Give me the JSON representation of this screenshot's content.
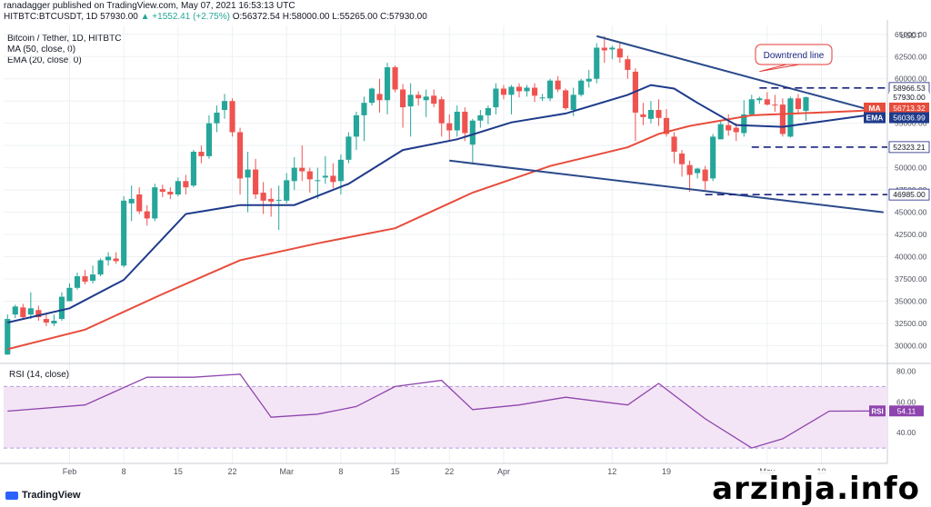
{
  "header": {
    "publisher_line": "ranadagger published on TradingView.com, May 07, 2021 16:53:13 UTC",
    "symbol": "HITBTC:BTCUSDT, 1D",
    "last": "57930.00",
    "change": "▲ +1552.41 (+2.75%)",
    "ohlc": "O:56372.54 H:58000.00 L:55265.00 C:57930.00"
  },
  "indicators": {
    "title": "Bitcoin / Tether, 1D, HITBTC",
    "ma": "MA (50, close, 0)",
    "ema": "EMA (20, close, 0)",
    "rsi": "RSI (14, close)"
  },
  "footer": {
    "logo_text": "TradingView"
  },
  "watermark": "arzinja.info",
  "colors": {
    "up": "#26a69a",
    "down": "#ef5350",
    "ma": "#e74c3c",
    "ema": "#1e3a8a",
    "trendline": "#2b4a8b",
    "rsi_line": "#8e44ad",
    "rsi_band": "#f3e5f5"
  },
  "chart_data": {
    "type": "candlestick",
    "price_axis": {
      "unit_label": "USDT",
      "ticks": [
        30000,
        32500,
        35000,
        37500,
        40000,
        42500,
        45000,
        47500,
        50000,
        52500,
        55000,
        57500,
        60000,
        62500,
        65000
      ],
      "tick_labels": [
        "30000.00",
        "32500.00",
        "35000.00",
        "37500.00",
        "40000.00",
        "42500.00",
        "45000.00",
        "47500.00",
        "50000.00",
        "52500.00",
        "55000.00",
        "57500.00",
        "60000.00",
        "62500.00",
        "65000.00"
      ],
      "range": [
        28000,
        66000
      ]
    },
    "time_axis": {
      "labels": [
        "Feb",
        "8",
        "15",
        "22",
        "Mar",
        "8",
        "15",
        "22",
        "Apr",
        "12",
        "19",
        "May",
        "10"
      ],
      "label_index": [
        8,
        15,
        22,
        29,
        36,
        43,
        50,
        57,
        64,
        78,
        85,
        98,
        105
      ]
    },
    "candles": [
      [
        29000,
        33000,
        29000,
        33500
      ],
      [
        33500,
        34400,
        33100,
        34600
      ],
      [
        34300,
        33200,
        33000,
        34700
      ],
      [
        33500,
        34200,
        33000,
        36000
      ],
      [
        34000,
        33200,
        32800,
        34500
      ],
      [
        33000,
        32600,
        32200,
        33600
      ],
      [
        32500,
        32800,
        32200,
        33500
      ],
      [
        33000,
        35500,
        32800,
        36000
      ],
      [
        35000,
        36500,
        35000,
        37000
      ],
      [
        36500,
        37800,
        36300,
        38200
      ],
      [
        37800,
        37200,
        36900,
        38500
      ],
      [
        37300,
        38000,
        37000,
        39000
      ],
      [
        38000,
        39600,
        37800,
        39800
      ],
      [
        39600,
        40000,
        39000,
        40500
      ],
      [
        39800,
        39500,
        39200,
        40500
      ],
      [
        39000,
        46300,
        38800,
        46800
      ],
      [
        46000,
        46500,
        44000,
        48000
      ],
      [
        47000,
        45100,
        44800,
        47800
      ],
      [
        45100,
        44300,
        43500,
        45800
      ],
      [
        44300,
        47800,
        44000,
        48200
      ],
      [
        47600,
        47300,
        46700,
        48100
      ],
      [
        47300,
        47000,
        46500,
        47800
      ],
      [
        47000,
        48500,
        46800,
        48900
      ],
      [
        48500,
        47800,
        47000,
        49200
      ],
      [
        48000,
        51800,
        47800,
        52000
      ],
      [
        51800,
        51300,
        50500,
        52500
      ],
      [
        51300,
        55000,
        51000,
        55900
      ],
      [
        55000,
        56200,
        54000,
        57000
      ],
      [
        56500,
        57500,
        55500,
        58300
      ],
      [
        57500,
        54000,
        53500,
        57800
      ],
      [
        54000,
        48800,
        47000,
        54500
      ],
      [
        48900,
        49800,
        45000,
        51800
      ],
      [
        49800,
        47000,
        46500,
        51000
      ],
      [
        47200,
        46300,
        44800,
        48400
      ],
      [
        46500,
        46200,
        44500,
        47700
      ],
      [
        46300,
        46400,
        43000,
        48000
      ],
      [
        46300,
        48600,
        46000,
        49400
      ],
      [
        48500,
        50000,
        47500,
        51200
      ],
      [
        50000,
        49600,
        48500,
        52500
      ],
      [
        49600,
        48700,
        47200,
        50000
      ],
      [
        48500,
        48600,
        46500,
        50000
      ],
      [
        48900,
        49100,
        48200,
        51300
      ],
      [
        49100,
        48400,
        47700,
        50500
      ],
      [
        48500,
        50900,
        47000,
        51500
      ],
      [
        50900,
        53500,
        50500,
        54000
      ],
      [
        53500,
        55900,
        52000,
        56300
      ],
      [
        55900,
        57300,
        53000,
        58000
      ],
      [
        57300,
        58900,
        57000,
        59000
      ],
      [
        58300,
        57600,
        56200,
        60000
      ],
      [
        57600,
        61300,
        56000,
        61800
      ],
      [
        61300,
        58800,
        58500,
        61500
      ],
      [
        58800,
        56800,
        54500,
        59400
      ],
      [
        56900,
        58200,
        53500,
        59500
      ],
      [
        58200,
        57800,
        57000,
        58600
      ],
      [
        57600,
        58000,
        55700,
        58800
      ],
      [
        58100,
        57200,
        56800,
        58800
      ],
      [
        57700,
        55000,
        53500,
        58000
      ],
      [
        55000,
        54200,
        53000,
        56000
      ],
      [
        54200,
        56300,
        53500,
        57000
      ],
      [
        56300,
        53900,
        53000,
        56800
      ],
      [
        52600,
        55300,
        50600,
        55500
      ],
      [
        55300,
        55900,
        54500,
        56500
      ],
      [
        55900,
        56700,
        54900,
        57000
      ],
      [
        56800,
        58900,
        56000,
        59500
      ],
      [
        58900,
        58200,
        57700,
        59300
      ],
      [
        58200,
        59100,
        56000,
        59300
      ],
      [
        59100,
        58600,
        57900,
        59500
      ],
      [
        58600,
        59000,
        58000,
        59300
      ],
      [
        59000,
        58100,
        57400,
        59500
      ],
      [
        57900,
        57900,
        57500,
        58300
      ],
      [
        57800,
        59800,
        57500,
        60000
      ],
      [
        59800,
        58800,
        58500,
        60300
      ],
      [
        58700,
        56700,
        56500,
        58900
      ],
      [
        56500,
        58200,
        55800,
        59000
      ],
      [
        58200,
        59800,
        58000,
        60000
      ],
      [
        59700,
        60000,
        59000,
        61000
      ],
      [
        60000,
        63500,
        59500,
        64000
      ],
      [
        63500,
        63200,
        61800,
        64800
      ],
      [
        63300,
        63500,
        62200,
        63700
      ],
      [
        63400,
        62400,
        61800,
        64100
      ],
      [
        62200,
        61000,
        60000,
        62600
      ],
      [
        60800,
        56200,
        53000,
        61200
      ],
      [
        56000,
        55700,
        54800,
        57300
      ],
      [
        55500,
        56500,
        55000,
        57500
      ],
      [
        56500,
        55600,
        54700,
        57700
      ],
      [
        55600,
        53800,
        53500,
        56600
      ],
      [
        53500,
        51800,
        50500,
        54000
      ],
      [
        51600,
        50400,
        49000,
        52000
      ],
      [
        50300,
        49200,
        47300,
        50800
      ],
      [
        49400,
        49900,
        48800,
        50000
      ],
      [
        49800,
        48500,
        47500,
        50200
      ],
      [
        48800,
        53500,
        48500,
        53800
      ],
      [
        53200,
        54900,
        53200,
        55200
      ],
      [
        54800,
        54200,
        53600,
        56000
      ],
      [
        54500,
        54000,
        53000,
        55000
      ],
      [
        53900,
        56000,
        53500,
        57600
      ],
      [
        56000,
        57700,
        55800,
        58200
      ],
      [
        57600,
        57800,
        57200,
        58000
      ],
      [
        57700,
        57100,
        57000,
        58500
      ],
      [
        57100,
        57000,
        56300,
        58200
      ],
      [
        57100,
        53800,
        53500,
        57800
      ],
      [
        53500,
        57800,
        53400,
        58000
      ],
      [
        57800,
        56600,
        56000,
        58300
      ],
      [
        56400,
        57930,
        55265,
        58000
      ]
    ],
    "ma50_points": [
      [
        0,
        29600
      ],
      [
        10,
        31800
      ],
      [
        20,
        35800
      ],
      [
        30,
        39600
      ],
      [
        40,
        41500
      ],
      [
        50,
        43200
      ],
      [
        60,
        47200
      ],
      [
        70,
        50200
      ],
      [
        80,
        52300
      ],
      [
        84,
        53800
      ],
      [
        88,
        54700
      ],
      [
        96,
        55900
      ],
      [
        110,
        56400
      ],
      [
        113,
        56713
      ]
    ],
    "ema20_points": [
      [
        0,
        32600
      ],
      [
        8,
        34200
      ],
      [
        15,
        37400
      ],
      [
        23,
        44800
      ],
      [
        30,
        45800
      ],
      [
        37,
        45800
      ],
      [
        44,
        48200
      ],
      [
        51,
        52000
      ],
      [
        58,
        53200
      ],
      [
        65,
        55100
      ],
      [
        72,
        56100
      ],
      [
        80,
        58200
      ],
      [
        83,
        59300
      ],
      [
        86,
        58900
      ],
      [
        89,
        57300
      ],
      [
        94,
        54800
      ],
      [
        100,
        54600
      ],
      [
        105,
        55200
      ],
      [
        112,
        56037
      ]
    ],
    "rsi": {
      "range": [
        20,
        85
      ],
      "levels": [
        70,
        30
      ],
      "ticks": [
        40,
        60,
        80
      ],
      "tick_labels": [
        "40.00",
        "60.00",
        "80.00"
      ],
      "points": [
        [
          0,
          54
        ],
        [
          10,
          58
        ],
        [
          18,
          76
        ],
        [
          24,
          76
        ],
        [
          30,
          78
        ],
        [
          34,
          50
        ],
        [
          40,
          52
        ],
        [
          45,
          57
        ],
        [
          50,
          70
        ],
        [
          56,
          74
        ],
        [
          60,
          55
        ],
        [
          66,
          58
        ],
        [
          72,
          63
        ],
        [
          80,
          58
        ],
        [
          84,
          72
        ],
        [
          90,
          49
        ],
        [
          96,
          30
        ],
        [
          100,
          36
        ],
        [
          106,
          54
        ],
        [
          113,
          54.11
        ]
      ]
    },
    "price_labels": [
      {
        "text": "58966.53",
        "value": 58966.53,
        "style": "line-label"
      },
      {
        "text": "57930.00",
        "value": 57930,
        "style": "last"
      },
      {
        "text": "07:06:52",
        "value": 57300,
        "style": "countdown"
      },
      {
        "text": "MA",
        "value": 56713.32,
        "style": "ma-tag"
      },
      {
        "text": "56713.32",
        "value": 56713.32,
        "style": "ma"
      },
      {
        "text": "EMA",
        "value": 56036.99,
        "style": "ema-tag"
      },
      {
        "text": "56036.99",
        "value": 56036.99,
        "style": "ema"
      },
      {
        "text": "52323.21",
        "value": 52323.21,
        "style": "line-label"
      },
      {
        "text": "46985.00",
        "value": 46985,
        "style": "line-label"
      }
    ],
    "rsi_label": {
      "tag": "RSI",
      "text": "54.11",
      "value": 54.11
    },
    "horizontal_levels": [
      {
        "value": 58966.53,
        "from": 97,
        "to": 113
      },
      {
        "value": 52323.21,
        "from": 96,
        "to": 113
      },
      {
        "value": 46985.0,
        "from": 90,
        "to": 113
      }
    ],
    "trendlines": [
      {
        "from": [
          76,
          64800
        ],
        "to": [
          113,
          56100
        ]
      },
      {
        "from": [
          57,
          50800
        ],
        "to": [
          113,
          45000
        ]
      }
    ],
    "annotation": {
      "text": "Downtrend line",
      "anchor": [
        97,
        59800
      ]
    }
  }
}
